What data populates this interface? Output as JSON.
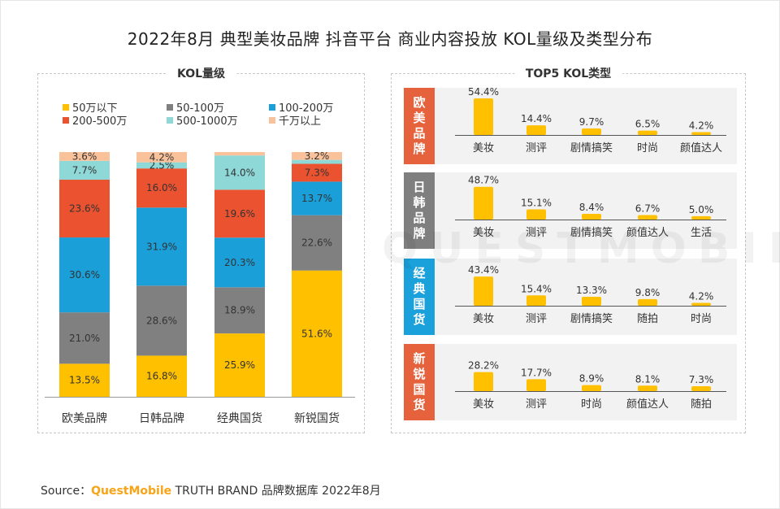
{
  "title": "2022年8月 典型美妆品牌 抖音平台 商业内容投放 KOL量级及类型分布",
  "left_panel_title": "KOL量级",
  "right_panel_title": "TOP5 KOL类型",
  "watermark": "QUESTMOBILE",
  "source": {
    "prefix": "Source：",
    "brand": "QuestMobile",
    "rest": "TRUTH BRAND 品牌数据库 2022年8月"
  },
  "colors": {
    "50万以下": "#ffc000",
    "50-100万": "#808080",
    "100-200万": "#1a9fd9",
    "200-500万": "#ea5230",
    "500-1000万": "#8ed8d8",
    "千万以上": "#fac29a",
    "bar_orange": "#ffc000",
    "label_1": "#e5623c",
    "label_2": "#7f7f7f",
    "label_3": "#1aa0da",
    "label_4": "#e5623c"
  },
  "chart_data": [
    {
      "type": "bar",
      "stacked": true,
      "title": "KOL量级",
      "categories": [
        "欧美品牌",
        "日韩品牌",
        "经典国货",
        "新锐国货"
      ],
      "unit": "%",
      "ylim": [
        0,
        100
      ],
      "legend_position": "top",
      "series": [
        {
          "name": "50万以下",
          "values": [
            13.5,
            16.8,
            25.9,
            51.6
          ]
        },
        {
          "name": "50-100万",
          "values": [
            21.0,
            28.6,
            18.9,
            22.6
          ]
        },
        {
          "name": "100-200万",
          "values": [
            30.6,
            31.9,
            20.3,
            13.7
          ]
        },
        {
          "name": "200-500万",
          "values": [
            23.6,
            16.0,
            19.6,
            7.3
          ]
        },
        {
          "name": "500-1000万",
          "values": [
            7.7,
            2.5,
            14.0,
            1.6
          ]
        },
        {
          "name": "千万以上",
          "values": [
            3.6,
            4.2,
            1.4,
            3.2
          ]
        }
      ]
    },
    {
      "type": "bar",
      "title": "TOP5 KOL类型",
      "unit": "%",
      "groups": [
        {
          "name": "欧美品牌",
          "categories": [
            "美妆",
            "测评",
            "剧情搞笑",
            "时尚",
            "颜值达人"
          ],
          "values": [
            54.4,
            14.4,
            9.7,
            6.5,
            4.2
          ]
        },
        {
          "name": "日韩品牌",
          "categories": [
            "美妆",
            "测评",
            "剧情搞笑",
            "颜值达人",
            "生活"
          ],
          "values": [
            48.7,
            15.1,
            8.4,
            6.7,
            5.0
          ]
        },
        {
          "name": "经典国货",
          "categories": [
            "美妆",
            "测评",
            "剧情搞笑",
            "随拍",
            "时尚"
          ],
          "values": [
            43.4,
            15.4,
            13.3,
            9.8,
            4.2
          ]
        },
        {
          "name": "新锐国货",
          "categories": [
            "美妆",
            "测评",
            "时尚",
            "颜值达人",
            "随拍"
          ],
          "values": [
            28.2,
            17.7,
            8.9,
            8.1,
            7.3
          ]
        }
      ]
    }
  ]
}
